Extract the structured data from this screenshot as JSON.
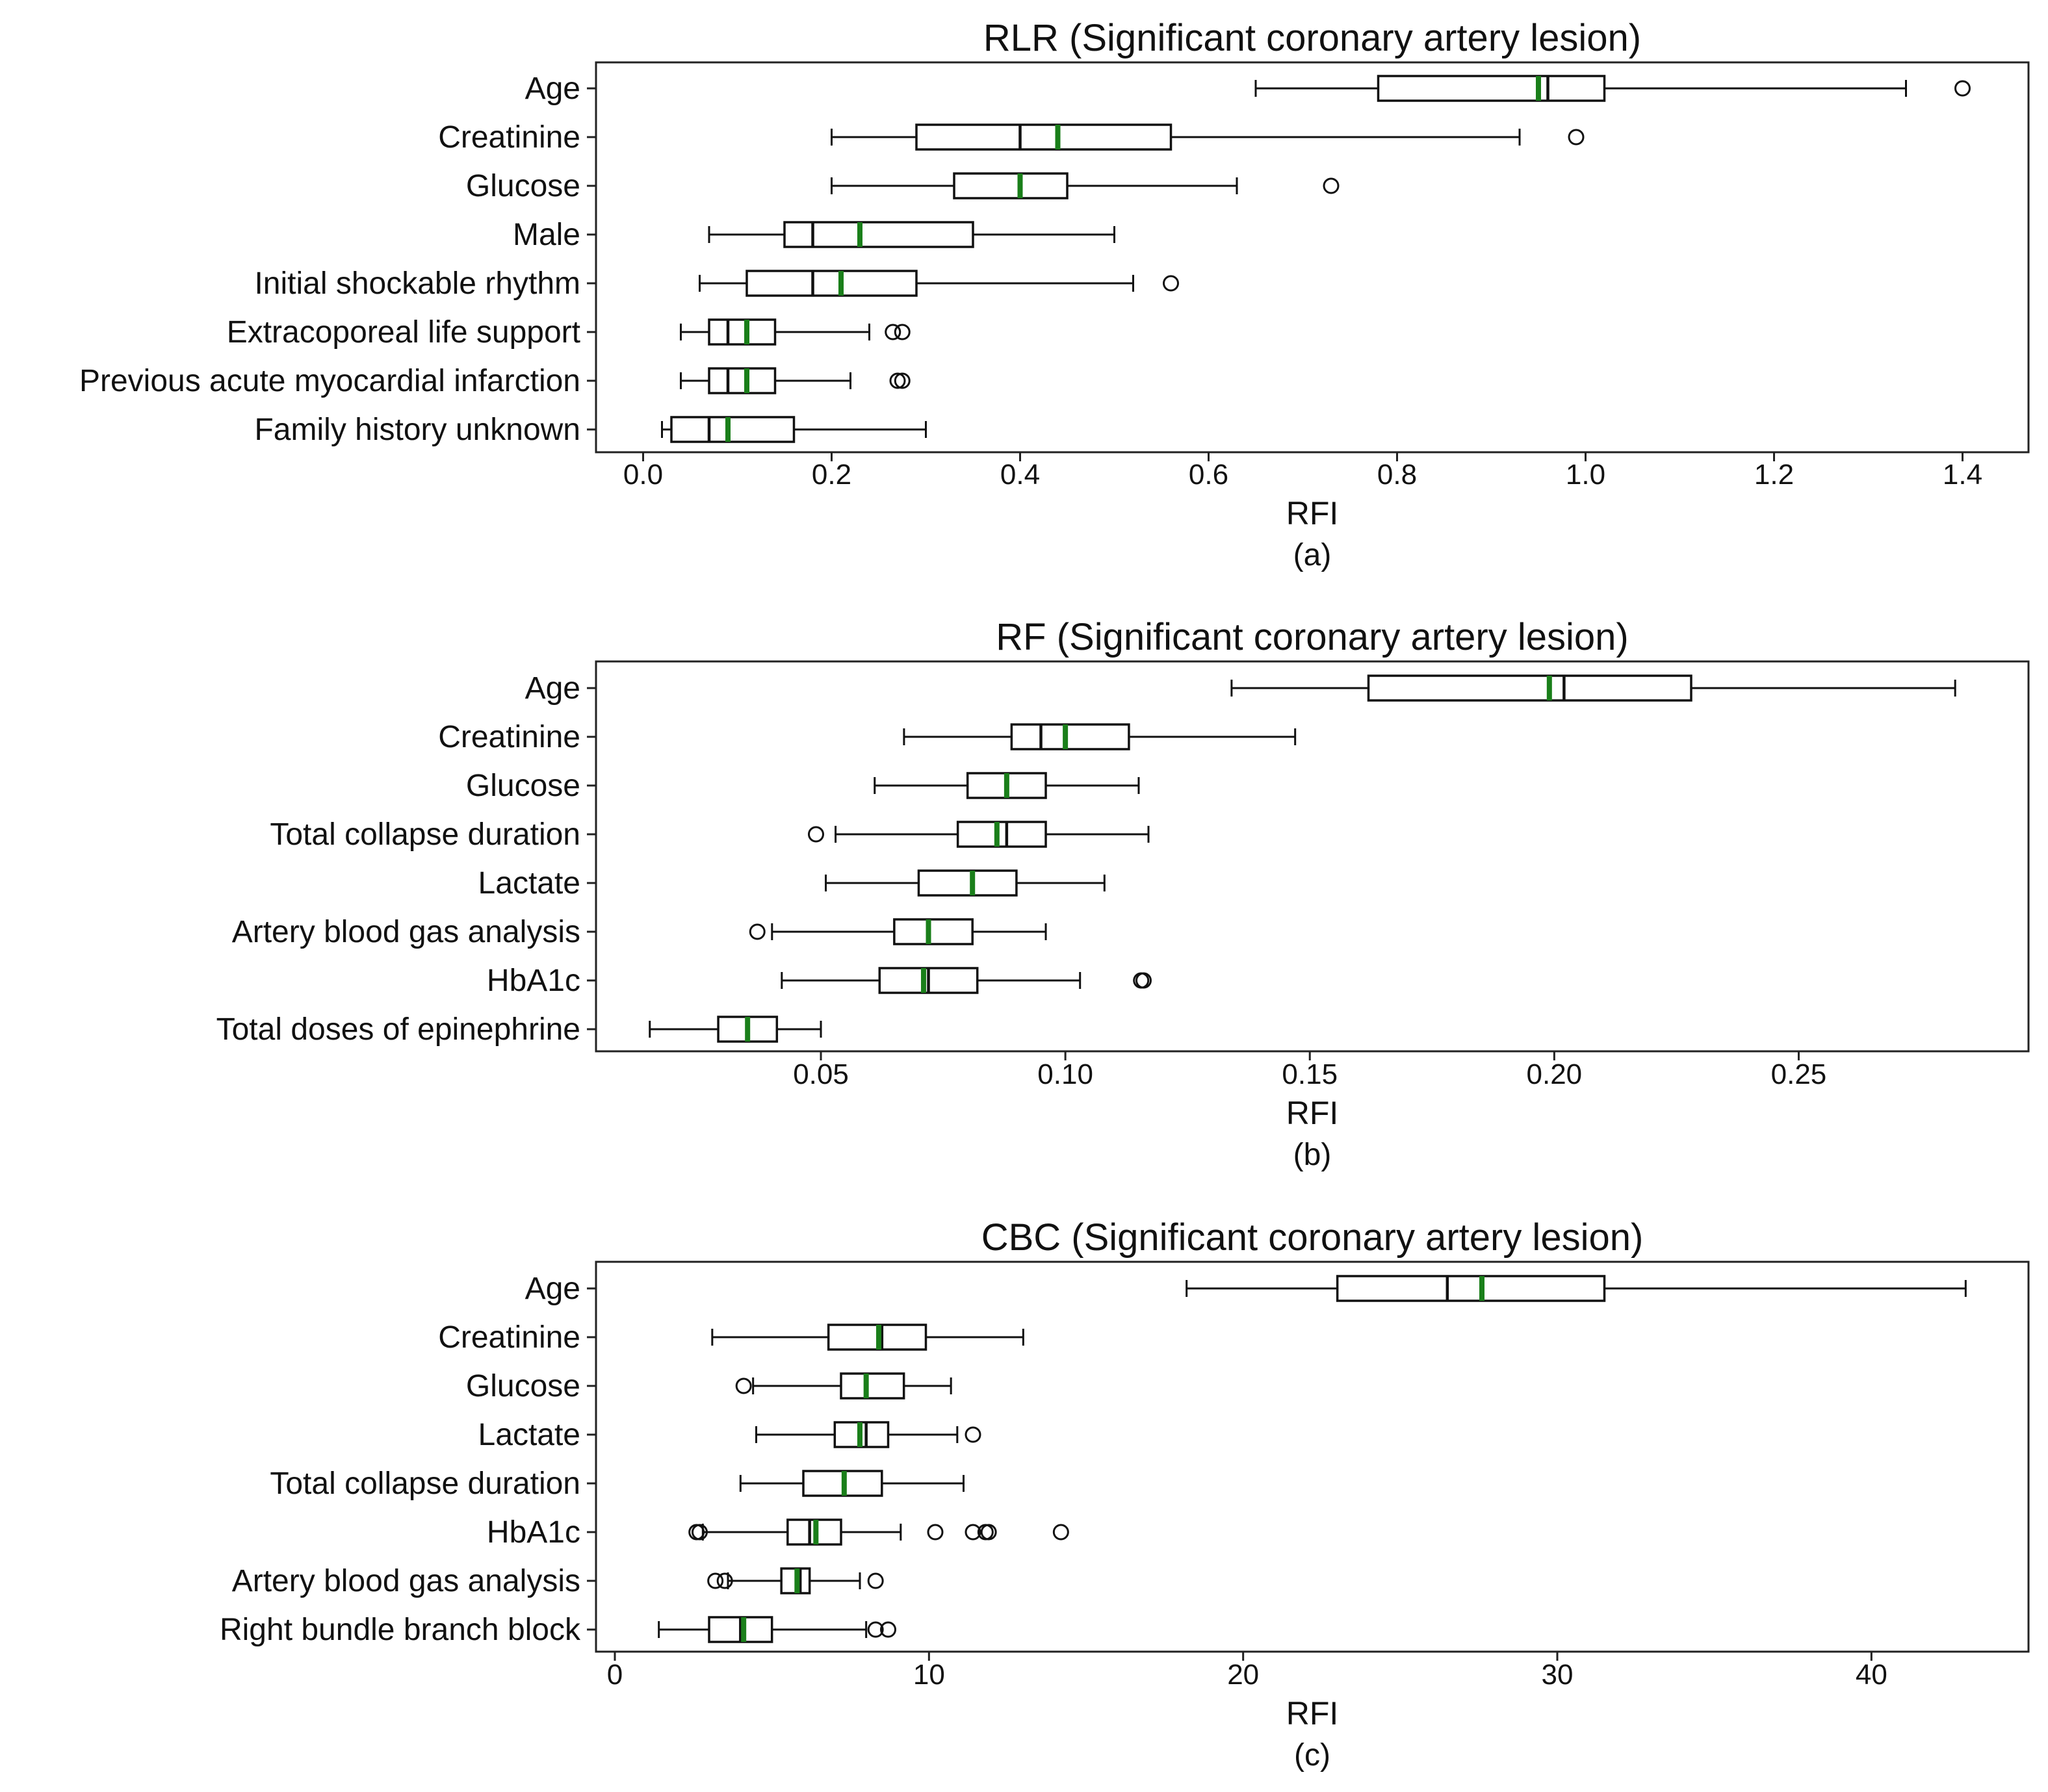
{
  "colors": {
    "mean_line": "#1a7f1a",
    "box_edge": "#111111",
    "background": "#ffffff"
  },
  "chart_data": [
    {
      "type": "boxplot",
      "title": "RLR (Significant coronary artery lesion)",
      "xlabel": "RFI",
      "caption": "(a)",
      "xlim": [
        -0.05,
        1.47
      ],
      "xticks": [
        0.0,
        0.2,
        0.4,
        0.6,
        0.8,
        1.0,
        1.2,
        1.4
      ],
      "xtick_labels": [
        "0.0",
        "0.2",
        "0.4",
        "0.6",
        "0.8",
        "1.0",
        "1.2",
        "1.4"
      ],
      "features": [
        {
          "label": "Age",
          "whislo": 0.65,
          "q1": 0.78,
          "med": 0.96,
          "mean": 0.95,
          "q3": 1.02,
          "whishi": 1.34,
          "fliers": [
            1.4
          ]
        },
        {
          "label": "Creatinine",
          "whislo": 0.2,
          "q1": 0.29,
          "med": 0.4,
          "mean": 0.44,
          "q3": 0.56,
          "whishi": 0.93,
          "fliers": [
            0.99
          ]
        },
        {
          "label": "Glucose",
          "whislo": 0.2,
          "q1": 0.33,
          "med": 0.4,
          "mean": 0.4,
          "q3": 0.45,
          "whishi": 0.63,
          "fliers": [
            0.73
          ]
        },
        {
          "label": "Male",
          "whislo": 0.07,
          "q1": 0.15,
          "med": 0.18,
          "mean": 0.23,
          "q3": 0.35,
          "whishi": 0.5,
          "fliers": []
        },
        {
          "label": "Initial shockable rhythm",
          "whislo": 0.06,
          "q1": 0.11,
          "med": 0.18,
          "mean": 0.21,
          "q3": 0.29,
          "whishi": 0.52,
          "fliers": [
            0.56
          ]
        },
        {
          "label": "Extracoporeal life support",
          "whislo": 0.04,
          "q1": 0.07,
          "med": 0.09,
          "mean": 0.11,
          "q3": 0.14,
          "whishi": 0.24,
          "fliers": [
            0.265,
            0.275
          ]
        },
        {
          "label": "Previous acute myocardial infarction",
          "whislo": 0.04,
          "q1": 0.07,
          "med": 0.09,
          "mean": 0.11,
          "q3": 0.14,
          "whishi": 0.22,
          "fliers": [
            0.27,
            0.275
          ]
        },
        {
          "label": "Family history unknown",
          "whislo": 0.02,
          "q1": 0.03,
          "med": 0.07,
          "mean": 0.09,
          "q3": 0.16,
          "whishi": 0.3,
          "fliers": []
        }
      ]
    },
    {
      "type": "boxplot",
      "title": "RF (Significant coronary artery lesion)",
      "xlabel": "RFI",
      "caption": "(b)",
      "xlim": [
        0.004,
        0.297
      ],
      "xticks": [
        0.05,
        0.1,
        0.15,
        0.2,
        0.25
      ],
      "xtick_labels": [
        "0.05",
        "0.10",
        "0.15",
        "0.20",
        "0.25"
      ],
      "features": [
        {
          "label": "Age",
          "whislo": 0.134,
          "q1": 0.162,
          "med": 0.202,
          "mean": 0.199,
          "q3": 0.228,
          "whishi": 0.282,
          "fliers": []
        },
        {
          "label": "Creatinine",
          "whislo": 0.067,
          "q1": 0.089,
          "med": 0.095,
          "mean": 0.1,
          "q3": 0.113,
          "whishi": 0.147,
          "fliers": []
        },
        {
          "label": "Glucose",
          "whislo": 0.061,
          "q1": 0.08,
          "med": 0.088,
          "mean": 0.088,
          "q3": 0.096,
          "whishi": 0.115,
          "fliers": []
        },
        {
          "label": "Total collapse duration",
          "whislo": 0.053,
          "q1": 0.078,
          "med": 0.088,
          "mean": 0.086,
          "q3": 0.096,
          "whishi": 0.117,
          "fliers": [
            0.049
          ]
        },
        {
          "label": "Lactate",
          "whislo": 0.051,
          "q1": 0.07,
          "med": 0.081,
          "mean": 0.081,
          "q3": 0.09,
          "whishi": 0.108,
          "fliers": []
        },
        {
          "label": "Artery blood gas analysis",
          "whislo": 0.04,
          "q1": 0.065,
          "med": 0.072,
          "mean": 0.072,
          "q3": 0.081,
          "whishi": 0.096,
          "fliers": [
            0.037
          ]
        },
        {
          "label": "HbA1c",
          "whislo": 0.042,
          "q1": 0.062,
          "med": 0.072,
          "mean": 0.071,
          "q3": 0.082,
          "whishi": 0.103,
          "fliers": [
            0.1155,
            0.116
          ]
        },
        {
          "label": "Total doses of epinephrine",
          "whislo": 0.015,
          "q1": 0.029,
          "med": 0.035,
          "mean": 0.035,
          "q3": 0.041,
          "whishi": 0.05,
          "fliers": []
        }
      ]
    },
    {
      "type": "boxplot",
      "title": "CBC (Significant coronary artery lesion)",
      "xlabel": "RFI",
      "caption": "(c)",
      "xlim": [
        -0.6,
        45
      ],
      "xticks": [
        0,
        10,
        20,
        30,
        40
      ],
      "xtick_labels": [
        "0",
        "10",
        "20",
        "30",
        "40"
      ],
      "features": [
        {
          "label": "Age",
          "whislo": 18.2,
          "q1": 23.0,
          "med": 26.5,
          "mean": 27.6,
          "q3": 31.5,
          "whishi": 43.0,
          "fliers": []
        },
        {
          "label": "Creatinine",
          "whislo": 3.1,
          "q1": 6.8,
          "med": 8.5,
          "mean": 8.4,
          "q3": 9.9,
          "whishi": 13.0,
          "fliers": []
        },
        {
          "label": "Glucose",
          "whislo": 4.4,
          "q1": 7.2,
          "med": 8.0,
          "mean": 8.0,
          "q3": 9.2,
          "whishi": 10.7,
          "fliers": [
            4.1
          ]
        },
        {
          "label": "Lactate",
          "whislo": 4.5,
          "q1": 7.0,
          "med": 8.0,
          "mean": 7.8,
          "q3": 8.7,
          "whishi": 10.9,
          "fliers": [
            11.4
          ]
        },
        {
          "label": "Total collapse duration",
          "whislo": 4.0,
          "q1": 6.0,
          "med": 7.3,
          "mean": 7.3,
          "q3": 8.5,
          "whishi": 11.1,
          "fliers": []
        },
        {
          "label": "HbA1c",
          "whislo": 2.8,
          "q1": 5.5,
          "med": 6.2,
          "mean": 6.4,
          "q3": 7.2,
          "whishi": 9.1,
          "fliers": [
            2.6,
            2.7,
            10.2,
            11.4,
            11.8,
            11.9,
            14.2
          ]
        },
        {
          "label": "Artery blood gas analysis",
          "whislo": 3.6,
          "q1": 5.3,
          "med": 5.9,
          "mean": 5.8,
          "q3": 6.2,
          "whishi": 7.8,
          "fliers": [
            3.2,
            3.5,
            8.3
          ]
        },
        {
          "label": "Right bundle branch block",
          "whislo": 1.4,
          "q1": 3.0,
          "med": 4.0,
          "mean": 4.1,
          "q3": 5.0,
          "whishi": 8.0,
          "fliers": [
            8.3,
            8.7
          ]
        }
      ]
    }
  ]
}
